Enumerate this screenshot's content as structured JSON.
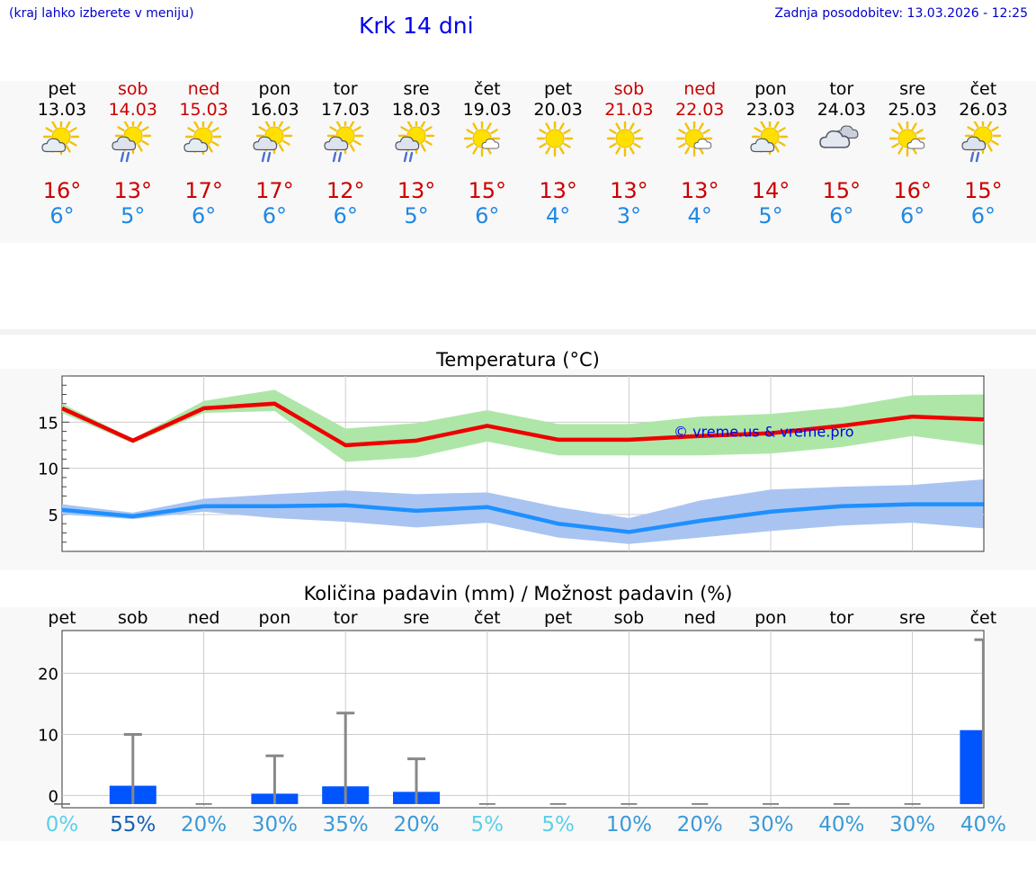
{
  "header": {
    "hint": "(kraj lahko izberete v meniju)",
    "title": "Krk 14 dni",
    "updated": "Zadnja posodobitev: 13.03.2026 - 12:25"
  },
  "days": [
    {
      "name": "pet",
      "date": "13.03",
      "weekend": false,
      "icon": "sun-cloud-icon",
      "tmax": "16°",
      "tmin": "6°",
      "pct": "0%"
    },
    {
      "name": "sob",
      "date": "14.03",
      "weekend": true,
      "icon": "sun-cloud-rain-icon",
      "tmax": "13°",
      "tmin": "5°",
      "pct": "55%"
    },
    {
      "name": "ned",
      "date": "15.03",
      "weekend": true,
      "icon": "sun-cloud-icon",
      "tmax": "17°",
      "tmin": "6°",
      "pct": "20%"
    },
    {
      "name": "pon",
      "date": "16.03",
      "weekend": false,
      "icon": "sun-cloud-rain-icon",
      "tmax": "17°",
      "tmin": "6°",
      "pct": "30%"
    },
    {
      "name": "tor",
      "date": "17.03",
      "weekend": false,
      "icon": "sun-cloud-rain-icon",
      "tmax": "12°",
      "tmin": "6°",
      "pct": "35%"
    },
    {
      "name": "sre",
      "date": "18.03",
      "weekend": false,
      "icon": "sun-cloud-rain-icon",
      "tmax": "13°",
      "tmin": "5°",
      "pct": "20%"
    },
    {
      "name": "čet",
      "date": "19.03",
      "weekend": false,
      "icon": "sun-small-cloud-icon",
      "tmax": "15°",
      "tmin": "6°",
      "pct": "5%"
    },
    {
      "name": "pet",
      "date": "20.03",
      "weekend": false,
      "icon": "sun-icon",
      "tmax": "13°",
      "tmin": "4°",
      "pct": "5%"
    },
    {
      "name": "sob",
      "date": "21.03",
      "weekend": true,
      "icon": "sun-icon",
      "tmax": "13°",
      "tmin": "3°",
      "pct": "10%"
    },
    {
      "name": "ned",
      "date": "22.03",
      "weekend": true,
      "icon": "sun-small-cloud-icon",
      "tmax": "13°",
      "tmin": "4°",
      "pct": "20%"
    },
    {
      "name": "pon",
      "date": "23.03",
      "weekend": false,
      "icon": "sun-cloud-icon",
      "tmax": "14°",
      "tmin": "5°",
      "pct": "30%"
    },
    {
      "name": "tor",
      "date": "24.03",
      "weekend": false,
      "icon": "cloud-icon",
      "tmax": "15°",
      "tmin": "6°",
      "pct": "40%"
    },
    {
      "name": "sre",
      "date": "25.03",
      "weekend": false,
      "icon": "sun-small-cloud-icon",
      "tmax": "16°",
      "tmin": "6°",
      "pct": "30%"
    },
    {
      "name": "čet",
      "date": "26.03",
      "weekend": false,
      "icon": "sun-cloud-rain-icon",
      "tmax": "15°",
      "tmin": "6°",
      "pct": "40%"
    }
  ],
  "colors": {
    "max_line": "#ee0000",
    "max_band": "#aee6a8",
    "min_line": "#1e90ff",
    "min_band": "#aac4f2",
    "bar": "#0055ff",
    "whisker": "#888888"
  },
  "chart_data": [
    {
      "type": "line",
      "title": "Temperatura (°C)",
      "watermark": "© vreme.us & vreme.pro",
      "ylim": [
        1,
        20
      ],
      "yticks": [
        5,
        10,
        15
      ],
      "x": [
        0,
        1,
        2,
        3,
        4,
        5,
        6,
        7,
        8,
        9,
        10,
        11,
        12,
        13
      ],
      "series": [
        {
          "name": "max",
          "values": [
            16.5,
            13.0,
            16.5,
            17.0,
            12.5,
            13.0,
            14.6,
            13.1,
            13.1,
            13.5,
            13.8,
            14.6,
            15.6,
            15.3
          ],
          "band_low": [
            16.0,
            12.7,
            16.0,
            16.2,
            10.7,
            11.2,
            12.9,
            11.4,
            11.4,
            11.4,
            11.6,
            12.3,
            13.5,
            12.5
          ],
          "band_high": [
            17.0,
            13.2,
            17.3,
            18.5,
            14.3,
            14.9,
            16.3,
            14.8,
            14.8,
            15.6,
            15.9,
            16.6,
            17.9,
            18.0
          ]
        },
        {
          "name": "min",
          "values": [
            5.5,
            4.8,
            5.9,
            5.9,
            6.0,
            5.4,
            5.8,
            4.0,
            3.1,
            4.3,
            5.3,
            5.9,
            6.1,
            6.1
          ],
          "band_low": [
            5.0,
            4.5,
            5.3,
            4.6,
            4.2,
            3.6,
            4.1,
            2.5,
            1.8,
            2.5,
            3.2,
            3.8,
            4.1,
            3.5
          ],
          "band_high": [
            6.1,
            5.2,
            6.7,
            7.2,
            7.6,
            7.2,
            7.4,
            5.8,
            4.6,
            6.5,
            7.7,
            8.0,
            8.2,
            8.8
          ]
        }
      ]
    },
    {
      "type": "bar",
      "title": "Količina padavin (mm) / Možnost padavin (%)",
      "ylim": [
        -2,
        27
      ],
      "yticks": [
        0,
        10,
        20
      ],
      "values": [
        0,
        1.6,
        0,
        0.3,
        1.5,
        0.6,
        0,
        0,
        0,
        0,
        0,
        0,
        0,
        10.7
      ],
      "max": [
        0,
        10.0,
        0,
        6.5,
        13.5,
        6.0,
        0,
        0,
        0,
        0,
        0,
        0,
        0,
        25.5
      ],
      "chance_pct": [
        0,
        55,
        20,
        30,
        35,
        20,
        5,
        5,
        10,
        20,
        30,
        40,
        30,
        40
      ]
    }
  ]
}
